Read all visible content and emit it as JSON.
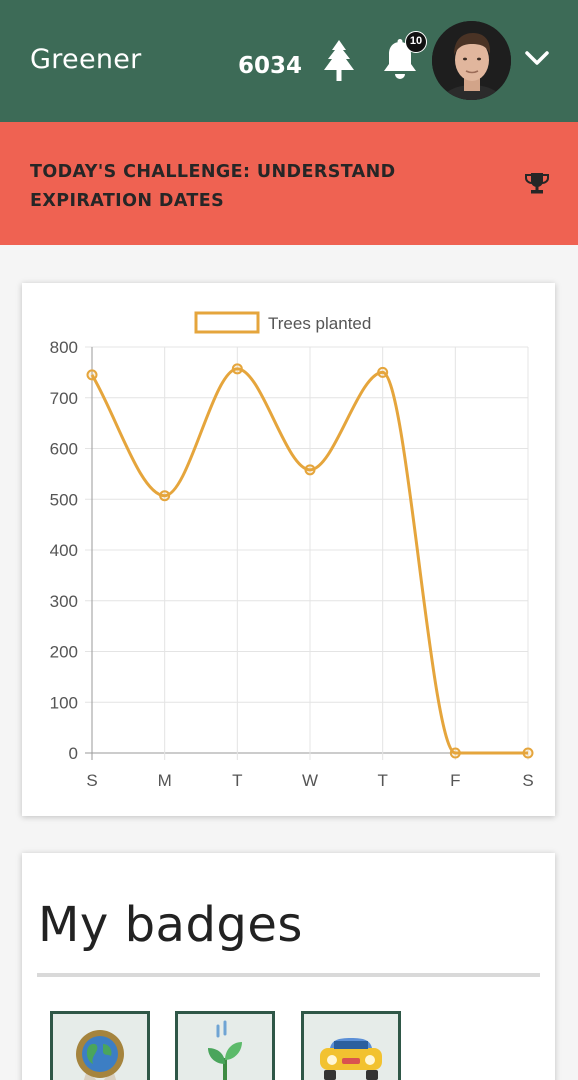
{
  "header": {
    "brand": "Greener",
    "tree_count": "6034",
    "tree_icon": "tree-icon",
    "notifications": {
      "icon": "bell-icon",
      "count": "10"
    },
    "avatar": "user-avatar",
    "menu_icon": "chevron-down-icon"
  },
  "challenge": {
    "text": "TODAY'S CHALLENGE: UNDERSTAND EXPIRATION DATES",
    "icon": "trophy-icon"
  },
  "colors": {
    "header_bg": "#3d6b57",
    "challenge_bg": "#ef6252",
    "line": "#e5a53c"
  },
  "chart_data": {
    "type": "line",
    "categories": [
      "S",
      "M",
      "T",
      "W",
      "T",
      "F",
      "S"
    ],
    "series": [
      {
        "name": "Trees planted",
        "values": [
          745,
          507,
          757,
          558,
          750,
          0,
          0
        ]
      }
    ],
    "ylim": [
      0,
      800
    ],
    "yticks": [
      0,
      100,
      200,
      300,
      400,
      500,
      600,
      700,
      800
    ],
    "grid": true,
    "legend": "top-center",
    "smooth": true
  },
  "badges": {
    "title": "My badges",
    "items": [
      {
        "icon": "earth-medal-icon"
      },
      {
        "icon": "sprout-icon"
      },
      {
        "icon": "car-icon"
      }
    ]
  }
}
